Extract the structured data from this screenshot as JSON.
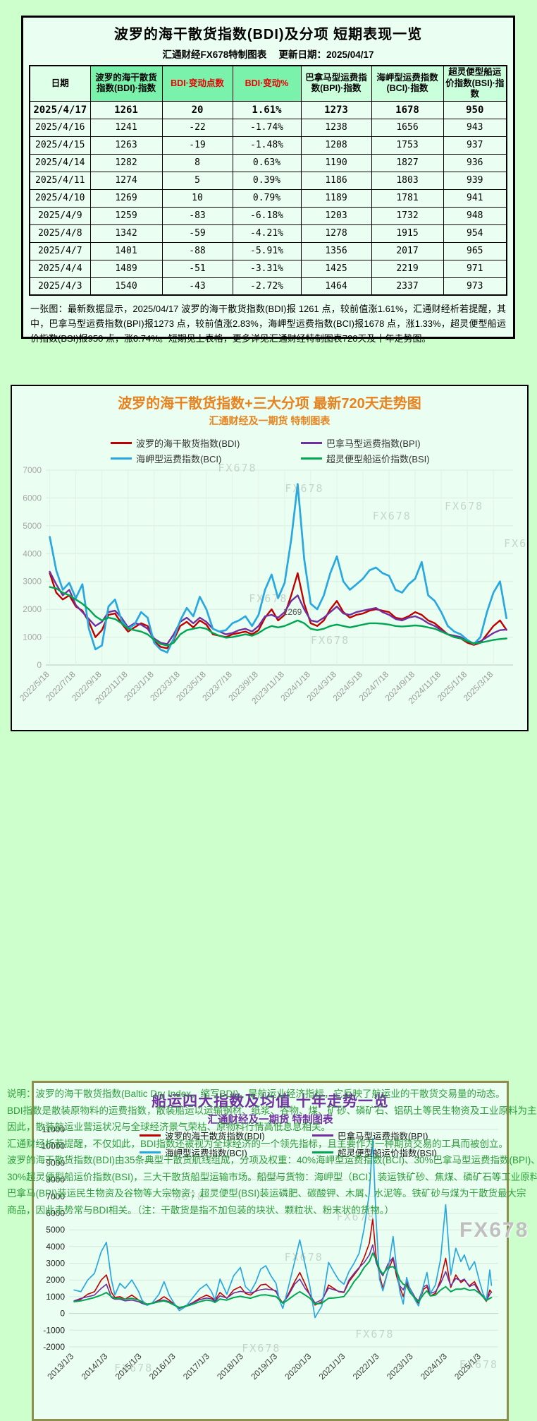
{
  "page": {
    "watermark": "FX678"
  },
  "colors": {
    "page_green": "#CCFFCC",
    "panel_green": "#EAFFF1",
    "table_header_bright": "#7BF2AC",
    "table_header_light": "#C9FFDB",
    "accent_orange": "#E8821E",
    "accent_purple": "#7030A0",
    "note_green": "#2E9E3C",
    "header_red_text": "#E60000",
    "bdi_red": "#C00000",
    "bpi_purple": "#7030A0",
    "bci_blue": "#29A8E0",
    "bsi_green": "#00A651",
    "chart2_border": "#8E8E4E"
  },
  "table_section": {
    "title": "波罗的海干散货指数(BDI)及分项 短期表现一览",
    "subtitle": "汇通财经FX678特制图表　 更新日期：2025/04/17",
    "columns": [
      "日期",
      "波罗的海干散货指数(BDI)·指数",
      "BDI·变动点数",
      "BDI·变动%",
      "巴拿马型运费指数(BPI)·指数",
      "海岬型运费指数(BCI)·指数",
      "超灵便型船运价指数(BSI)·指数"
    ],
    "rows": [
      [
        "2025/4/17",
        "1261",
        "20",
        "1.61%",
        "1273",
        "1678",
        "950"
      ],
      [
        "2025/4/16",
        "1241",
        "-22",
        "-1.74%",
        "1238",
        "1656",
        "943"
      ],
      [
        "2025/4/15",
        "1263",
        "-19",
        "-1.48%",
        "1208",
        "1753",
        "937"
      ],
      [
        "2025/4/14",
        "1282",
        "8",
        "0.63%",
        "1190",
        "1827",
        "936"
      ],
      [
        "2025/4/11",
        "1274",
        "5",
        "0.39%",
        "1186",
        "1803",
        "939"
      ],
      [
        "2025/4/10",
        "1269",
        "10",
        "0.79%",
        "1189",
        "1781",
        "941"
      ],
      [
        "2025/4/9",
        "1259",
        "-83",
        "-6.18%",
        "1203",
        "1732",
        "948"
      ],
      [
        "2025/4/8",
        "1342",
        "-59",
        "-4.21%",
        "1278",
        "1915",
        "954"
      ],
      [
        "2025/4/7",
        "1401",
        "-88",
        "-5.91%",
        "1356",
        "2017",
        "965"
      ],
      [
        "2025/4/4",
        "1489",
        "-51",
        "-3.31%",
        "1425",
        "2219",
        "971"
      ],
      [
        "2025/4/3",
        "1540",
        "-43",
        "-2.72%",
        "1464",
        "2337",
        "973"
      ]
    ],
    "summary": "一张图：最新数据显示，2025/04/17 波罗的海干散货指数(BDI)报 1261 点，较前值涨1.61%，汇通财经析若提醒，其中，巴拿马型运费指数(BPI)报1273 点，较前值涨2.83%，海岬型运费指数(BCI)报1678 点，涨1.33%，超灵便型船运价指数(BSI)报950 点，涨0.74%。短期见上表格，更多详见汇通财经特制图表720天及十年走势图。"
  },
  "chart_data": [
    {
      "type": "line",
      "title": "波罗的海干散货指数+三大分项 最新720天走势图",
      "subtitle": "汇通财经及一期货 特制图表",
      "legend_position": "top",
      "grid": true,
      "ylim": [
        0,
        7000
      ],
      "ytick_step": 1000,
      "x_domain": [
        -0.3,
        35.5
      ],
      "x_start": 0,
      "x_step": 0.5,
      "xticks": [
        {
          "x": 0,
          "label": "2022/5/18"
        },
        {
          "x": 2,
          "label": "2022/7/18"
        },
        {
          "x": 4,
          "label": "2022/9/18"
        },
        {
          "x": 6,
          "label": "2022/11/18"
        },
        {
          "x": 8,
          "label": "2023/1/18"
        },
        {
          "x": 10,
          "label": "2023/3/18"
        },
        {
          "x": 12,
          "label": "2023/5/18"
        },
        {
          "x": 14,
          "label": "2023/7/18"
        },
        {
          "x": 16,
          "label": "2023/9/18"
        },
        {
          "x": 18,
          "label": "2023/11/18"
        },
        {
          "x": 20,
          "label": "2024/1/18"
        },
        {
          "x": 22,
          "label": "2024/3/18"
        },
        {
          "x": 24,
          "label": "2024/5/18"
        },
        {
          "x": 26,
          "label": "2024/7/18"
        },
        {
          "x": 28,
          "label": "2024/9/18"
        },
        {
          "x": 30,
          "label": "2024/11/18"
        },
        {
          "x": 32,
          "label": "2025/1/18"
        },
        {
          "x": 34,
          "label": "2025/3/18"
        }
      ],
      "annotations": [
        {
          "x": 18.6,
          "y": 1800,
          "label": "1269"
        }
      ],
      "series": [
        {
          "id": "bdi",
          "name": "波罗的海干散货指数(BDI)",
          "color": "#C00000",
          "width": 2.4,
          "values": [
            3300,
            2600,
            2350,
            2500,
            2100,
            1950,
            1550,
            1000,
            1250,
            1800,
            1850,
            1500,
            1200,
            1350,
            1500,
            1400,
            850,
            650,
            600,
            900,
            1400,
            1550,
            1350,
            1600,
            1450,
            1100,
            1050,
            1000,
            1100,
            1150,
            1200,
            1100,
            1250,
            1700,
            2000,
            1600,
            1800,
            2500,
            3300,
            2200,
            1500,
            1400,
            1600,
            2000,
            2300,
            1900,
            1700,
            1800,
            1850,
            1950,
            2000,
            1950,
            1900,
            1700,
            1650,
            1750,
            1900,
            1800,
            1600,
            1500,
            1300,
            1100,
            1000,
            950,
            800,
            720,
            800,
            1100,
            1400,
            1600,
            1261
          ]
        },
        {
          "id": "bpi",
          "name": "巴拿马型运费指数(BPI)",
          "color": "#7030A0",
          "width": 2.4,
          "values": [
            3350,
            2900,
            2500,
            2700,
            2150,
            1900,
            1650,
            1400,
            1550,
            1900,
            1950,
            1700,
            1350,
            1500,
            1450,
            1300,
            950,
            800,
            750,
            1100,
            1550,
            1700,
            1500,
            1700,
            1550,
            1300,
            1200,
            1100,
            1150,
            1250,
            1300,
            1200,
            1400,
            1750,
            1800,
            1700,
            1900,
            2300,
            2500,
            2000,
            1600,
            1550,
            1700,
            1900,
            2100,
            1850,
            1800,
            1900,
            1950,
            2000,
            2050,
            1900,
            1800,
            1650,
            1600,
            1700,
            1750,
            1650,
            1500,
            1400,
            1250,
            1100,
            1050,
            1000,
            850,
            780,
            850,
            1000,
            1150,
            1250,
            1273
          ]
        },
        {
          "id": "bci",
          "name": "海岬型运费指数(BCI)",
          "color": "#29A8E0",
          "width": 2.7,
          "values": [
            4600,
            3400,
            2700,
            2950,
            2400,
            2900,
            1300,
            560,
            700,
            2100,
            2350,
            1600,
            1300,
            1450,
            1900,
            1700,
            800,
            550,
            450,
            950,
            1600,
            2050,
            1750,
            2450,
            2000,
            1300,
            1200,
            1250,
            1500,
            1600,
            1750,
            1400,
            1800,
            2700,
            3250,
            2400,
            2950,
            4500,
            6500,
            3800,
            2200,
            2000,
            2500,
            3300,
            3900,
            3000,
            2700,
            2900,
            3100,
            3400,
            3500,
            3300,
            3200,
            2700,
            2600,
            2900,
            3100,
            3700,
            2500,
            2300,
            1900,
            1400,
            1200,
            1100,
            900,
            750,
            1000,
            1900,
            2600,
            3000,
            1678
          ]
        },
        {
          "id": "bsi",
          "name": "超灵便型船运价指数(BSI)",
          "color": "#00A651",
          "width": 2.4,
          "values": [
            2800,
            2750,
            2600,
            2500,
            2350,
            2200,
            2000,
            1750,
            1600,
            1700,
            1650,
            1500,
            1300,
            1250,
            1200,
            1100,
            900,
            750,
            700,
            800,
            1100,
            1250,
            1300,
            1350,
            1300,
            1150,
            1050,
            980,
            1000,
            1050,
            1100,
            1050,
            1150,
            1300,
            1400,
            1350,
            1400,
            1500,
            1600,
            1500,
            1300,
            1250,
            1300,
            1400,
            1450,
            1400,
            1350,
            1400,
            1450,
            1500,
            1500,
            1480,
            1450,
            1400,
            1380,
            1400,
            1420,
            1400,
            1350,
            1300,
            1200,
            1100,
            1000,
            950,
            850,
            780,
            800,
            850,
            900,
            930,
            950
          ]
        }
      ]
    },
    {
      "type": "line",
      "title": "船运四大指数及均值 十年走势一览",
      "subtitle": "汇通财经及一期货 特制图表",
      "legend_position": "top-inside",
      "grid": true,
      "ylim": [
        -2000,
        11000
      ],
      "ytick_step": 1000,
      "x_domain": [
        2012.85,
        2025.5
      ],
      "x": [
        2013.0,
        2013.2,
        2013.4,
        2013.6,
        2013.8,
        2013.95,
        2014.1,
        2014.2,
        2014.35,
        2014.5,
        2014.7,
        2014.9,
        2015.0,
        2015.15,
        2015.3,
        2015.5,
        2015.65,
        2015.8,
        2015.95,
        2016.1,
        2016.3,
        2016.5,
        2016.7,
        2016.9,
        2017.05,
        2017.15,
        2017.3,
        2017.5,
        2017.7,
        2017.9,
        2018.05,
        2018.2,
        2018.35,
        2018.5,
        2018.65,
        2018.8,
        2018.95,
        2019.05,
        2019.15,
        2019.3,
        2019.5,
        2019.65,
        2019.8,
        2019.95,
        2020.1,
        2020.3,
        2020.5,
        2020.65,
        2020.8,
        2020.95,
        2021.1,
        2021.25,
        2021.4,
        2021.55,
        2021.7,
        2021.8,
        2021.9,
        2022.0,
        2022.1,
        2022.25,
        2022.4,
        2022.5,
        2022.6,
        2022.7,
        2022.8,
        2022.9,
        2023.05,
        2023.15,
        2023.3,
        2023.4,
        2023.5,
        2023.65,
        2023.8,
        2023.95,
        2024.1,
        2024.25,
        2024.4,
        2024.5,
        2024.65,
        2024.8,
        2024.95,
        2025.05,
        2025.15,
        2025.25,
        2025.3
      ],
      "xticks": [
        {
          "x": 2013,
          "label": "2013/1/3"
        },
        {
          "x": 2014,
          "label": "2014/1/3"
        },
        {
          "x": 2015,
          "label": "2015/1/3"
        },
        {
          "x": 2016,
          "label": "2016/1/3"
        },
        {
          "x": 2017,
          "label": "2017/1/3"
        },
        {
          "x": 2018,
          "label": "2018/1/3"
        },
        {
          "x": 2019,
          "label": "2019/1/3"
        },
        {
          "x": 2020,
          "label": "2020/1/3"
        },
        {
          "x": 2021,
          "label": "2021/1/3"
        },
        {
          "x": 2022,
          "label": "2022/1/3"
        },
        {
          "x": 2023,
          "label": "2023/1/3"
        },
        {
          "x": 2024,
          "label": "2024/1/3"
        },
        {
          "x": 2025,
          "label": "2025/1/3"
        }
      ],
      "annotations": [],
      "series": [
        {
          "id": "bdi",
          "name": "波罗的海干散货指数(BDI)",
          "color": "#C00000",
          "width": 1.6,
          "values": [
            700,
            850,
            1150,
            1300,
            2000,
            2300,
            1250,
            950,
            1000,
            850,
            1100,
            800,
            700,
            560,
            600,
            800,
            1000,
            800,
            550,
            300,
            450,
            650,
            900,
            1100,
            950,
            780,
            1250,
            900,
            1400,
            1600,
            1200,
            1100,
            1350,
            1700,
            1750,
            1500,
            1300,
            900,
            620,
            1100,
            1900,
            2450,
            1800,
            1100,
            500,
            700,
            1700,
            1500,
            1300,
            1250,
            1900,
            2300,
            2700,
            3350,
            4200,
            5650,
            3400,
            2300,
            1500,
            2550,
            3300,
            2250,
            1550,
            1000,
            1800,
            1350,
            850,
            600,
            1450,
            1600,
            1050,
            1200,
            2000,
            3300,
            1550,
            2300,
            1850,
            2000,
            1650,
            1900,
            1300,
            1000,
            720,
            1400,
            1261
          ]
        },
        {
          "id": "bpi",
          "name": "巴拿马型运费指数(BPI)",
          "color": "#7030A0",
          "width": 1.6,
          "values": [
            750,
            900,
            1000,
            1100,
            1500,
            1750,
            950,
            850,
            850,
            750,
            800,
            700,
            600,
            500,
            620,
            750,
            800,
            700,
            500,
            320,
            470,
            620,
            820,
            920,
            870,
            720,
            1050,
            920,
            1220,
            1320,
            1270,
            1220,
            1320,
            1420,
            1460,
            1420,
            1360,
            820,
            620,
            1020,
            1750,
            2050,
            1520,
            1120,
            620,
            820,
            1520,
            1420,
            1320,
            1280,
            2000,
            2400,
            2750,
            3050,
            3500,
            4100,
            3050,
            2550,
            2250,
            2950,
            3350,
            2450,
            1650,
            1400,
            1900,
            1500,
            950,
            750,
            1600,
            1700,
            1200,
            1300,
            1800,
            2500,
            1650,
            2100,
            1950,
            2050,
            1600,
            1750,
            1250,
            1050,
            780,
            1150,
            1273
          ]
        },
        {
          "id": "bci",
          "name": "海岬型运费指数(BCI)",
          "color": "#29A8E0",
          "width": 1.7,
          "values": [
            1400,
            1300,
            2000,
            2400,
            3700,
            4250,
            2000,
            1100,
            1800,
            1500,
            2000,
            1300,
            800,
            480,
            620,
            1150,
            1900,
            1100,
            600,
            170,
            430,
            950,
            1450,
            1750,
            1300,
            820,
            2050,
            1150,
            2250,
            2750,
            1600,
            1300,
            1850,
            2650,
            2850,
            2250,
            1800,
            800,
            300,
            1450,
            3100,
            4400,
            3000,
            1600,
            -250,
            450,
            3050,
            2500,
            2000,
            1750,
            2500,
            3000,
            3600,
            5100,
            7200,
            10450,
            5600,
            2050,
            1350,
            2550,
            4600,
            2750,
            1300,
            560,
            2150,
            1450,
            800,
            450,
            1700,
            2450,
            1200,
            1700,
            3250,
            6500,
            2300,
            3900,
            3100,
            3500,
            2600,
            3100,
            1900,
            1200,
            750,
            2600,
            1678
          ]
        },
        {
          "id": "bsi",
          "name": "超灵便型船运价指数(BSI)",
          "color": "#00A651",
          "width": 2.0,
          "values": [
            700,
            750,
            850,
            950,
            1100,
            1250,
            1000,
            900,
            900,
            850,
            900,
            800,
            650,
            550,
            600,
            700,
            750,
            650,
            500,
            360,
            430,
            550,
            700,
            800,
            760,
            660,
            860,
            800,
            950,
            1020,
            960,
            910,
            1010,
            1100,
            1110,
            1060,
            1010,
            810,
            610,
            810,
            1110,
            1300,
            1110,
            910,
            560,
            610,
            910,
            920,
            960,
            1010,
            1400,
            1900,
            2250,
            2750,
            3100,
            3600,
            3250,
            2650,
            2350,
            2750,
            2800,
            2550,
            2000,
            1750,
            1650,
            1250,
            900,
            700,
            1150,
            1350,
            1050,
            1100,
            1400,
            1600,
            1300,
            1450,
            1450,
            1500,
            1380,
            1420,
            1200,
            1000,
            780,
            900,
            950
          ]
        }
      ]
    }
  ],
  "footnotes": [
    "说明：波罗的海干散货指数(Baltic Dry Index，缩写BDI)，是航运业经济指标，它反映了航运业的干散货交易量的动态。",
    "BDI指数是散装原物料的运费指数，散装船运以运输钢材、纸浆、谷物、煤、矿砂、磷矿石、铝矾土等民生物资及工业原料为主。",
    "因此，散装航运业营运状况与全球经济景气荣枯、原物料行情高低息息相关。",
    "汇通财经析若提醒，不仅如此，BDI指数还被视为全球经济的一个领先指标，且主要作为一种期货交易的工具而被创立。",
    "波罗的海干散货指数(BDI)由35条典型干散货航线组成，分项及权重：40%海岬型运费指数(BCI)、30%巴拿马型运费指数(BPI)、",
    "30%超灵便型船运价指数(BSI)，三大干散货船型运输市场。船型与货物：海岬型（BCI）装运铁矿砂、焦煤、磷矿石等工业原料；",
    "巴拿马(BPI)装运民生物资及谷物等大宗物资；超灵便型(BSI)装运磷肥、碳酸钾、木屑、水泥等。铁矿砂与煤为干散货最大宗",
    "商品，因此走势常与BDI相关。（注：干散货是指不加包装的块状、颗粒状、粉末状的货物。）"
  ]
}
